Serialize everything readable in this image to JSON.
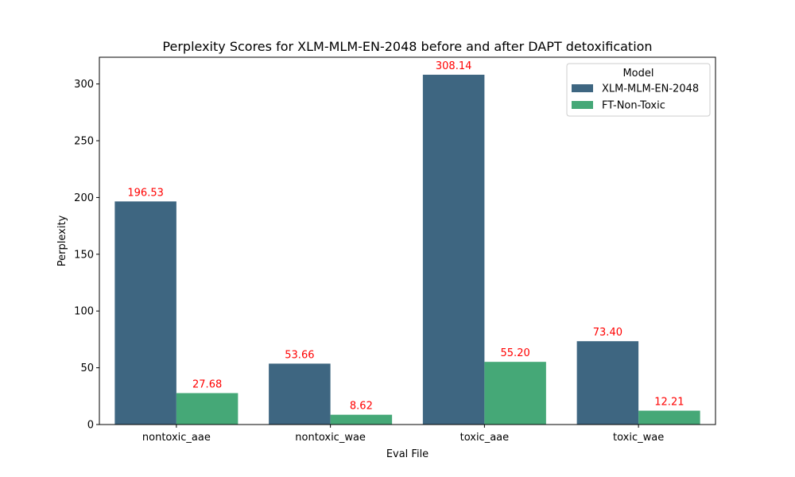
{
  "chart_data": {
    "type": "bar",
    "title": "Perplexity Scores for XLM-MLM-EN-2048 before and after DAPT detoxification",
    "xlabel": "Eval File",
    "ylabel": "Perplexity",
    "categories": [
      "nontoxic_aae",
      "nontoxic_wae",
      "toxic_aae",
      "toxic_wae"
    ],
    "series": [
      {
        "name": "XLM-MLM-EN-2048",
        "color": "#3e6681",
        "values": [
          196.53,
          53.66,
          308.14,
          73.4
        ],
        "labels": [
          "196.53",
          "53.66",
          "308.14",
          "73.40"
        ]
      },
      {
        "name": "FT-Non-Toxic",
        "color": "#45a877",
        "values": [
          27.68,
          8.62,
          55.2,
          12.21
        ],
        "labels": [
          "27.68",
          "8.62",
          "55.20",
          "12.21"
        ]
      }
    ],
    "ylim": [
      0,
      323.549
    ],
    "yticks": [
      0,
      50,
      100,
      150,
      200,
      250,
      300
    ],
    "ytick_labels": [
      "0",
      "50",
      "100",
      "150",
      "200",
      "250",
      "300"
    ],
    "grid": false,
    "legend": {
      "title": "Model",
      "placement": "top-right"
    },
    "data_label_color": "#ff0000"
  }
}
